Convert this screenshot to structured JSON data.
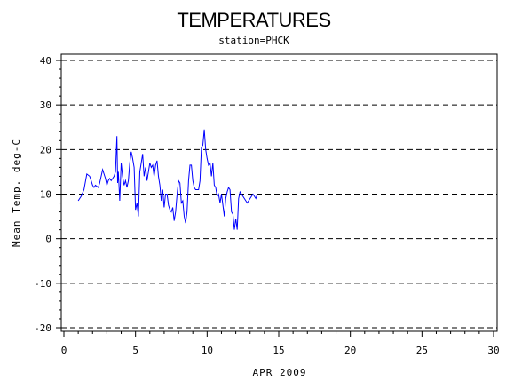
{
  "chart_data": {
    "type": "line",
    "title": "TEMPERATURES",
    "subtitle": "station=PHCK",
    "xlabel": "APR 2009",
    "ylabel": "Mean Temp. deg-C",
    "xlim": [
      0,
      30
    ],
    "ylim": [
      -20,
      40
    ],
    "x_ticks": [
      "0",
      "5",
      "10",
      "15",
      "20",
      "25",
      "30"
    ],
    "y_ticks": [
      "-20",
      "-10",
      "0",
      "10",
      "20",
      "30",
      "40"
    ],
    "grid": "dashed horizontal at major y ticks",
    "line_color": "#0000ff",
    "series": [
      {
        "x": [
          1.0,
          1.2,
          1.4,
          1.6,
          1.8,
          1.9,
          2.0,
          2.1,
          2.2,
          2.4,
          2.5,
          2.7,
          2.8,
          2.9,
          3.0,
          3.1,
          3.2,
          3.3,
          3.4,
          3.5,
          3.55,
          3.6,
          3.7,
          3.75,
          3.8,
          3.9,
          4.0,
          4.1,
          4.2,
          4.3,
          4.4,
          4.5,
          4.6,
          4.7,
          4.8,
          4.9,
          5.0,
          5.1,
          5.2,
          5.3,
          5.4,
          5.5,
          5.6,
          5.7,
          5.8,
          6.0,
          6.1,
          6.2,
          6.3,
          6.4,
          6.5,
          6.6,
          6.7,
          6.8,
          6.9,
          7.0,
          7.1,
          7.2,
          7.3,
          7.4,
          7.5,
          7.6,
          7.7,
          7.8,
          7.9,
          8.0,
          8.1,
          8.2,
          8.3,
          8.4,
          8.5,
          8.6,
          8.7,
          8.8,
          8.9,
          9.0,
          9.1,
          9.2,
          9.3,
          9.4,
          9.5,
          9.6,
          9.7,
          9.8,
          9.9,
          10.0,
          10.1,
          10.2,
          10.3,
          10.4,
          10.5,
          10.6,
          10.7,
          10.8,
          10.9,
          11.0,
          11.1,
          11.2,
          11.3,
          11.4,
          11.5,
          11.6,
          11.7,
          11.8,
          11.9,
          12.0,
          12.1,
          12.2,
          12.3,
          12.4,
          12.5,
          12.6,
          12.7,
          12.8,
          12.9,
          13.0,
          13.1,
          13.2,
          13.3,
          13.4,
          13.5
        ],
        "values": [
          8.5,
          9.5,
          11,
          14.5,
          14,
          13,
          12,
          11.5,
          12,
          11.5,
          12.5,
          15.5,
          14.5,
          13.5,
          12,
          13,
          13.5,
          13,
          13.5,
          14,
          14.5,
          15,
          23,
          12.5,
          15,
          8.5,
          17,
          14,
          12,
          13,
          11.5,
          13,
          17,
          19.5,
          18,
          16,
          6.5,
          8,
          5,
          15,
          17,
          19,
          14,
          16,
          13,
          17,
          16,
          16.5,
          14,
          16.5,
          17.5,
          14,
          12,
          8.5,
          11,
          7,
          10,
          10,
          7.5,
          6.5,
          6,
          7,
          4,
          6,
          10,
          13,
          12.5,
          8,
          8.5,
          5,
          3.5,
          6,
          13,
          16.5,
          16.5,
          13,
          11.5,
          11,
          11,
          11,
          13,
          20.5,
          21,
          24.5,
          20,
          18,
          16.5,
          17,
          14,
          17,
          12,
          11.5,
          9.5,
          10,
          8,
          10,
          7.5,
          5,
          9,
          10.5,
          11.5,
          11,
          6,
          5.5,
          2,
          4.5,
          2,
          9,
          10.5,
          10,
          9.5,
          9,
          8.5,
          8,
          8.5,
          9,
          9.5,
          10,
          9.5,
          9,
          10
        ]
      }
    ]
  }
}
